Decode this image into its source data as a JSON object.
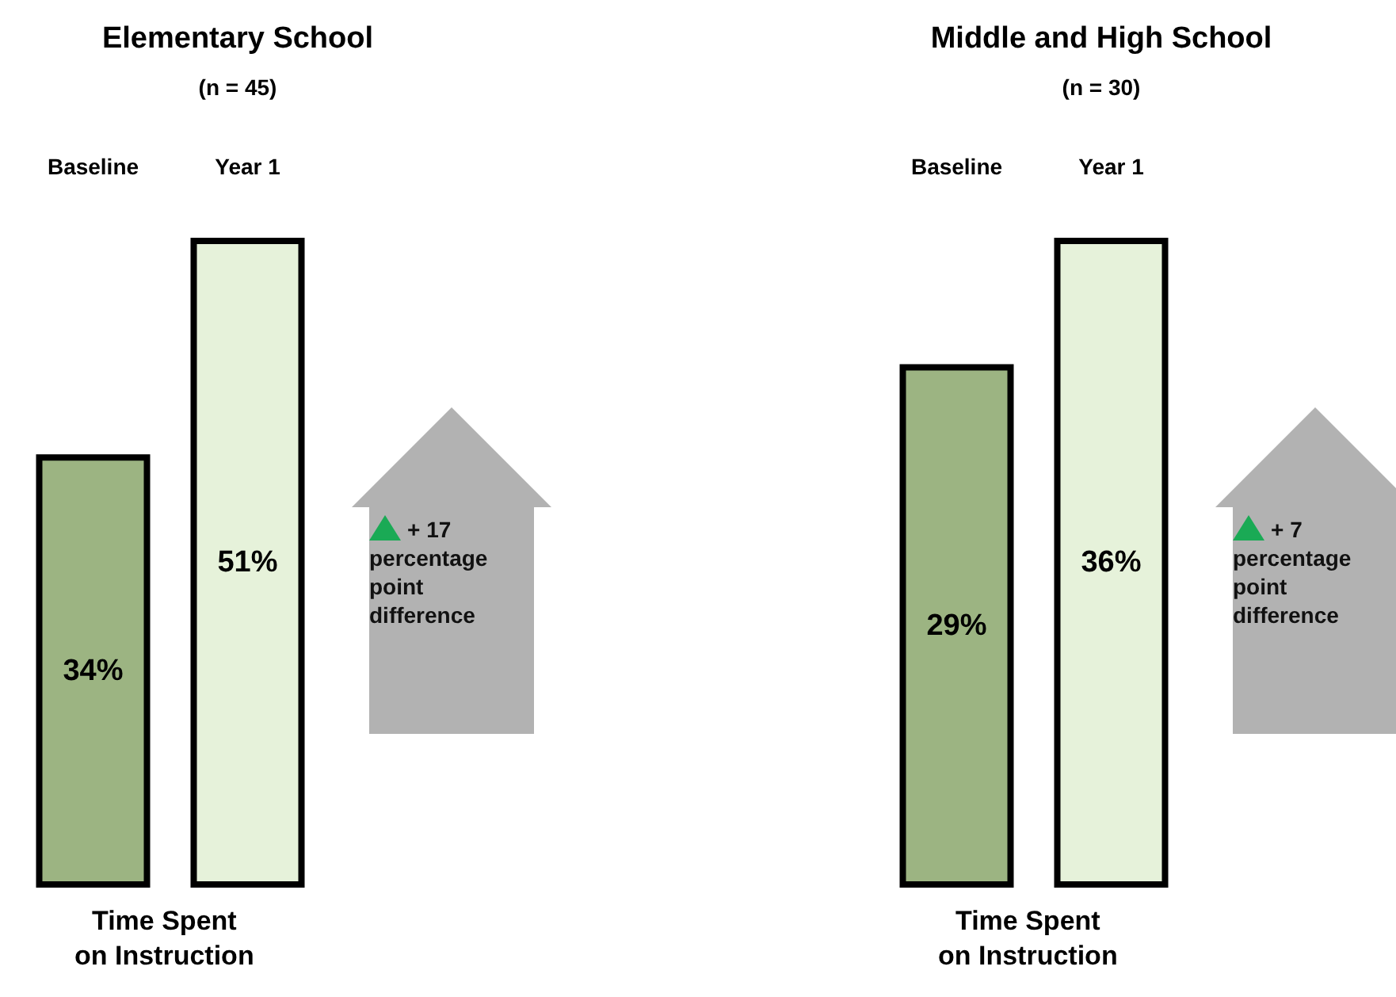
{
  "chart_data": [
    {
      "type": "bar",
      "title": "Elementary School",
      "subtitle": "(n = 45)",
      "categories": [
        "Baseline",
        "Year 1"
      ],
      "values": [
        34,
        51
      ],
      "colors": [
        "#9cb482",
        "#e6f2da"
      ],
      "value_labels": [
        "34%",
        "51%"
      ],
      "xlabel": "Time Spent\non Instruction",
      "annotations": [
        "+ 17 percentage point difference"
      ]
    },
    {
      "type": "bar",
      "title": "Middle and High School",
      "subtitle": "(n = 30)",
      "categories": [
        "Baseline",
        "Year 1"
      ],
      "values": [
        29,
        36
      ],
      "colors": [
        "#9cb482",
        "#e6f2da"
      ],
      "value_labels": [
        "29%",
        "36%"
      ],
      "xlabel": "Time Spent\non Instruction",
      "annotations": [
        "+ 7 percentage point difference"
      ]
    }
  ]
}
